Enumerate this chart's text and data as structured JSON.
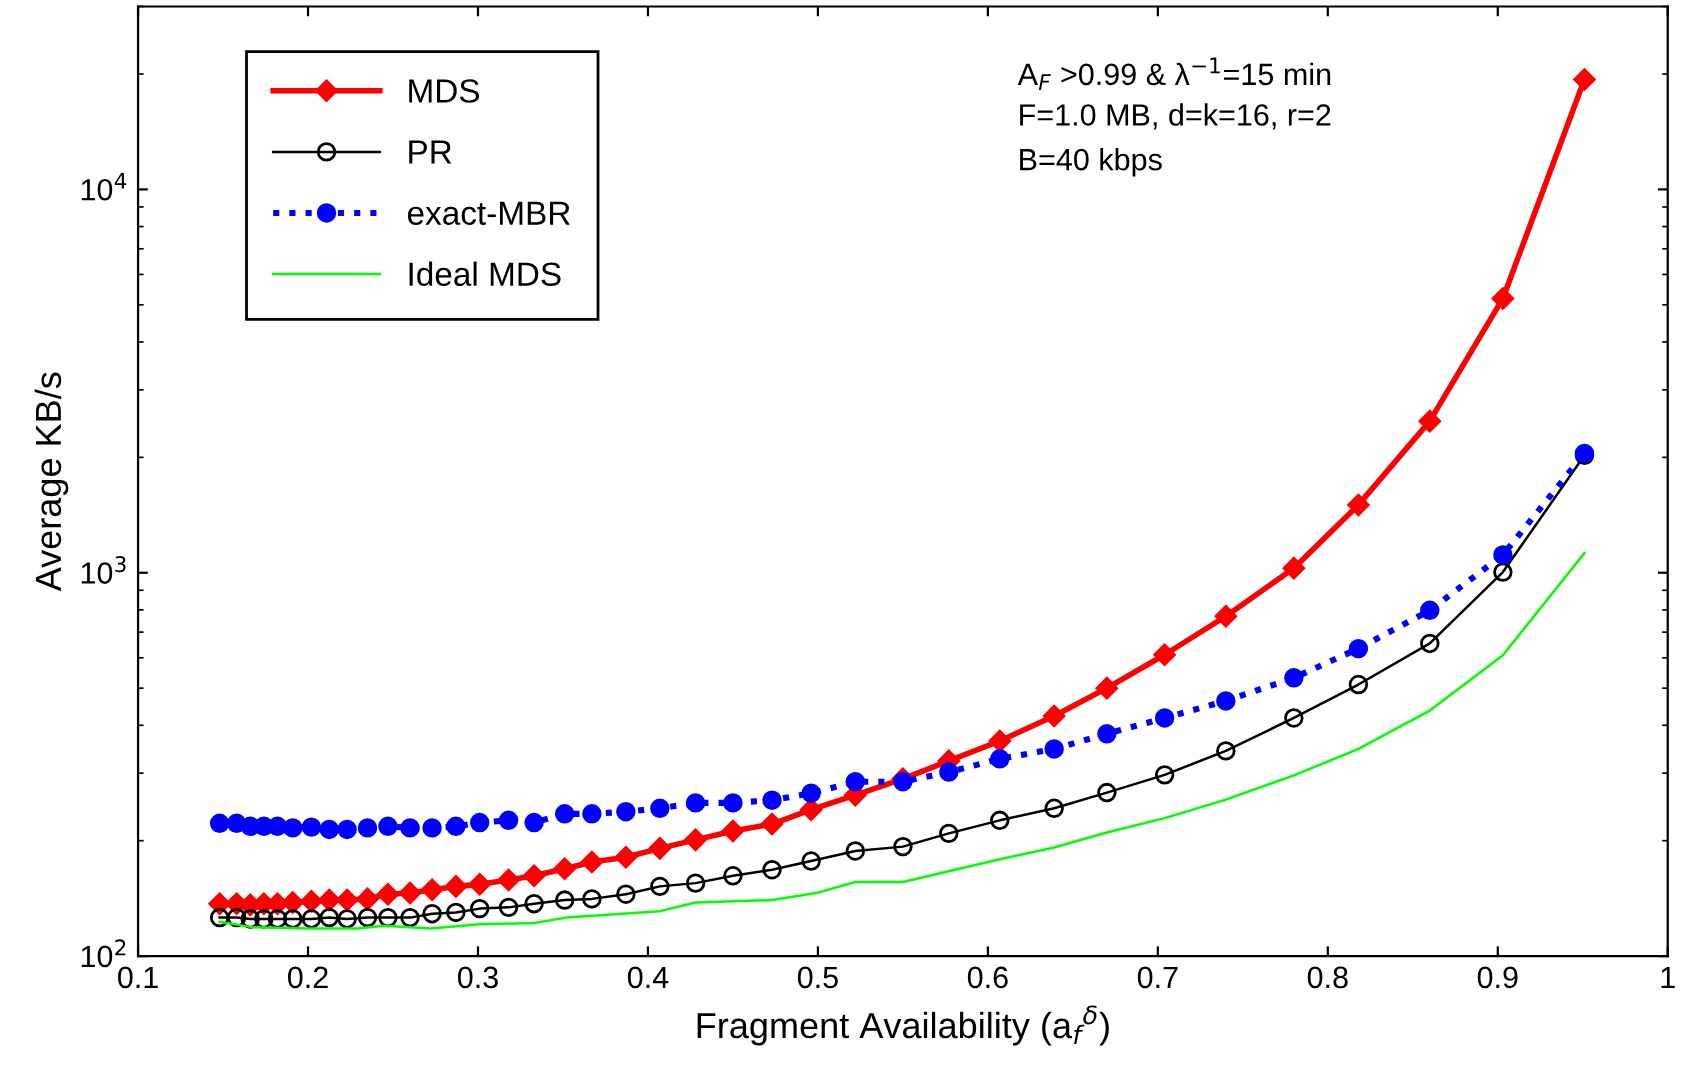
{
  "chart_data": {
    "type": "line",
    "xlabel": "Fragment Availability (a$_{f}$$^{δ}$)",
    "ylabel": "Average KB/s",
    "log": "y",
    "xlim": [
      0.1,
      1
    ],
    "ylim": [
      100,
      30000
    ],
    "xticks": [
      0.1,
      0.2,
      0.3,
      0.4,
      0.5,
      0.6,
      0.7,
      0.8,
      0.9,
      1
    ],
    "yticks": [
      {
        "value": 100,
        "label": "10$^{2}$"
      },
      {
        "value": 1000,
        "label": "10$^{3}$"
      },
      {
        "value": 10000,
        "label": "10$^{4}$"
      }
    ],
    "grid": false,
    "legend": "top left",
    "annotations": [
      "A$_{F}$ >0.99 & λ$^{−1}$=15 min",
      "F=1.0 MB, d=k=16, r=2",
      "B=40 kbps"
    ],
    "series": [
      {
        "name": "MDS",
        "color": "#ff0000",
        "marker": "diamond",
        "line_style": "solid",
        "x": [
          0.148,
          0.158,
          0.166,
          0.174,
          0.182,
          0.191,
          0.202,
          0.2125,
          0.223,
          0.235,
          0.247,
          0.26,
          0.273,
          0.287,
          0.301,
          0.318,
          0.333,
          0.351,
          0.367,
          0.387,
          0.407,
          0.428,
          0.45,
          0.473,
          0.496,
          0.522,
          0.55,
          0.577,
          0.607,
          0.639,
          0.67,
          0.704,
          0.74,
          0.78,
          0.818,
          0.86,
          0.903,
          0.951
        ],
        "values": [
          137,
          137,
          136,
          137,
          137,
          138,
          139,
          140,
          140,
          141,
          145,
          146,
          149,
          152,
          154,
          158,
          162,
          169,
          176,
          181,
          191,
          201,
          212,
          221,
          241,
          263,
          290,
          323,
          364,
          423,
          500,
          611,
          770,
          1028,
          1503,
          2486,
          5195,
          19360
        ]
      },
      {
        "name": "PR",
        "color": "#000000",
        "marker": "circle",
        "line_style": "solid",
        "x": [
          0.148,
          0.158,
          0.166,
          0.174,
          0.182,
          0.191,
          0.202,
          0.2125,
          0.223,
          0.235,
          0.247,
          0.26,
          0.273,
          0.287,
          0.301,
          0.318,
          0.333,
          0.351,
          0.367,
          0.387,
          0.407,
          0.428,
          0.45,
          0.473,
          0.496,
          0.522,
          0.55,
          0.577,
          0.607,
          0.639,
          0.67,
          0.704,
          0.74,
          0.78,
          0.818,
          0.86,
          0.903,
          0.951
        ],
        "values": [
          126,
          126,
          125,
          125,
          125,
          125,
          125,
          126,
          125,
          126,
          126,
          126,
          129,
          130,
          133,
          134,
          137,
          140,
          141,
          145,
          152,
          155,
          162,
          168,
          177,
          188,
          193,
          209,
          226,
          243,
          267,
          297,
          343,
          418,
          511,
          654,
          1004,
          2024
        ]
      },
      {
        "name": "exact-MBR",
        "color": "#0000ff",
        "marker": "circle",
        "line_style": "dotted",
        "x": [
          0.148,
          0.158,
          0.166,
          0.174,
          0.182,
          0.191,
          0.202,
          0.2125,
          0.223,
          0.235,
          0.247,
          0.26,
          0.273,
          0.287,
          0.301,
          0.318,
          0.333,
          0.351,
          0.367,
          0.387,
          0.407,
          0.428,
          0.45,
          0.473,
          0.496,
          0.522,
          0.55,
          0.577,
          0.607,
          0.639,
          0.67,
          0.704,
          0.74,
          0.78,
          0.818,
          0.86,
          0.903,
          0.951
        ],
        "values": [
          222,
          222,
          218,
          218,
          218,
          216,
          217,
          214,
          214,
          216,
          218,
          216,
          216,
          218,
          223,
          226,
          223,
          235,
          235,
          238,
          243,
          251,
          251,
          255,
          266,
          285,
          285,
          302,
          327,
          347,
          380,
          418,
          463,
          532,
          634,
          798,
          1113,
          2048
        ]
      },
      {
        "name": "Ideal MDS",
        "color": "#00ff00",
        "marker": "none",
        "line_style": "solid",
        "x": [
          0.148,
          0.167,
          0.202,
          0.229,
          0.245,
          0.272,
          0.301,
          0.333,
          0.352,
          0.407,
          0.428,
          0.473,
          0.499,
          0.522,
          0.55,
          0.607,
          0.639,
          0.67,
          0.704,
          0.74,
          0.78,
          0.818,
          0.86,
          0.903,
          0.951
        ],
        "values": [
          123,
          119,
          118,
          118,
          120,
          118,
          121,
          122,
          126,
          131,
          138,
          140,
          146,
          156,
          156,
          179,
          192,
          210,
          229,
          256,
          296,
          347,
          437,
          609,
          1126
        ]
      }
    ]
  }
}
